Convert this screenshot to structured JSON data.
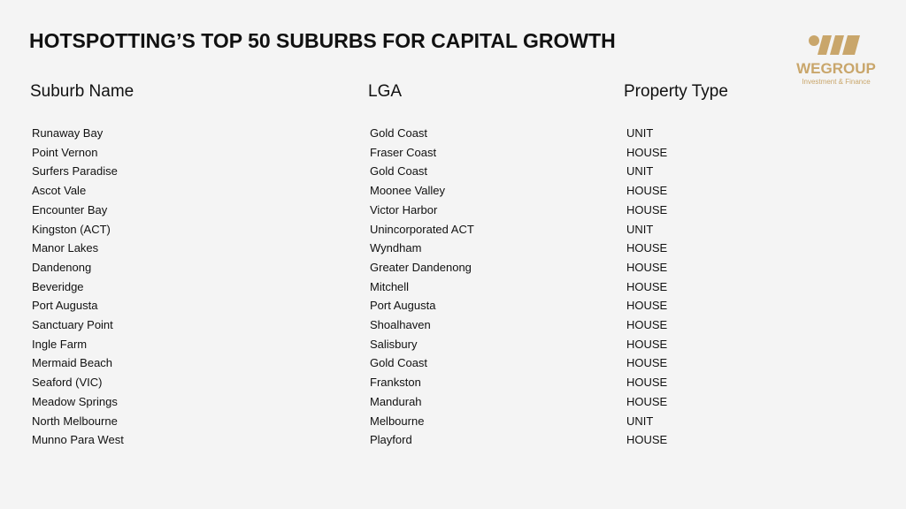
{
  "header": {
    "title": "HOTSPOTTING’S TOP 50 SUBURBS FOR CAPITAL GROWTH"
  },
  "logo": {
    "name": "WEGROUP",
    "tagline": "Investment & Finance"
  },
  "table": {
    "columns": [
      "Suburb Name",
      "LGA",
      "Property Type"
    ],
    "rows": [
      [
        "Runaway Bay",
        "Gold Coast",
        "UNIT"
      ],
      [
        "Point Vernon",
        "Fraser Coast",
        "HOUSE"
      ],
      [
        "Surfers Paradise",
        "Gold Coast",
        "UNIT"
      ],
      [
        "Ascot Vale",
        "Moonee Valley",
        "HOUSE"
      ],
      [
        "Encounter Bay",
        "Victor Harbor",
        "HOUSE"
      ],
      [
        "Kingston (ACT)",
        "Unincorporated ACT",
        "UNIT"
      ],
      [
        "Manor Lakes",
        "Wyndham",
        "HOUSE"
      ],
      [
        "Dandenong",
        "Greater Dandenong",
        "HOUSE"
      ],
      [
        "Beveridge",
        "Mitchell",
        "HOUSE"
      ],
      [
        "Port Augusta",
        "Port Augusta",
        "HOUSE"
      ],
      [
        "Sanctuary Point",
        "Shoalhaven",
        "HOUSE"
      ],
      [
        "Ingle Farm",
        "Salisbury",
        "HOUSE"
      ],
      [
        "Mermaid Beach",
        "Gold Coast",
        "HOUSE"
      ],
      [
        "Seaford (VIC)",
        "Frankston",
        "HOUSE"
      ],
      [
        "Meadow Springs",
        "Mandurah",
        "HOUSE"
      ],
      [
        "North Melbourne",
        "Melbourne",
        "UNIT"
      ],
      [
        "Munno Para West",
        "Playford",
        "HOUSE"
      ]
    ]
  }
}
